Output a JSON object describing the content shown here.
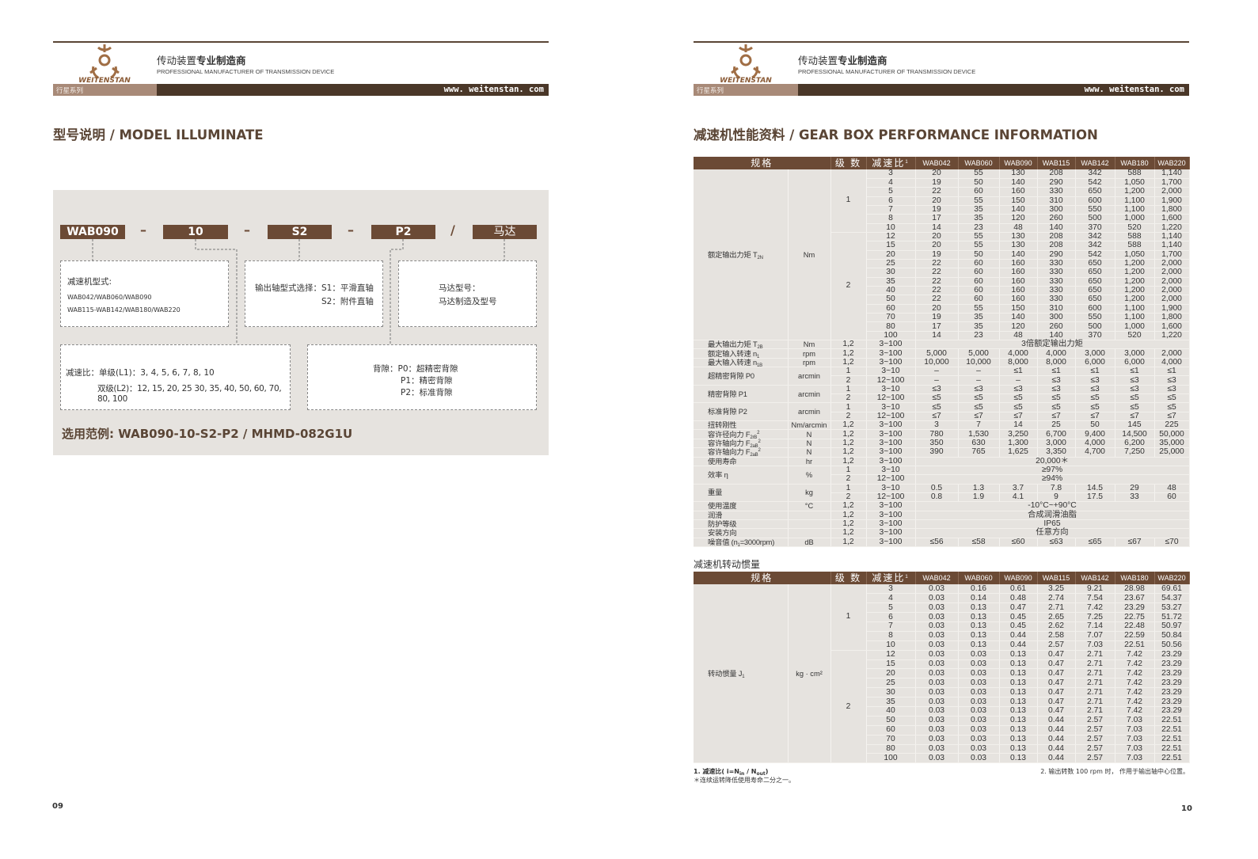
{
  "brand": {
    "name": "WEITENSTAN",
    "tagline_cn_normal": "传动装置",
    "tagline_cn_bold": "专业制造商",
    "tagline_en": "PROFESSIONAL MANUFACTURER OF TRANSMISSION DEVICE",
    "series": "行星系列",
    "website": "www. weitenstan. com",
    "colors": {
      "brown_dark": "#4a3728",
      "brown": "#6b4a35",
      "brown_light": "#a88a78",
      "panel": "#e6e3df"
    }
  },
  "left": {
    "title": "型号说明 / MODEL ILLUMINATE",
    "codes": [
      "WAB090",
      "10",
      "S2",
      "P2",
      "马达"
    ],
    "separators": [
      "–",
      "–",
      "–",
      "/"
    ],
    "box_type": {
      "label": "减速机型式:",
      "line1": "WAB042/WAB060/WAB090",
      "line2": "WAB115-WAB142/WAB180/WAB220"
    },
    "box_shaft": {
      "label": "输出轴型式选择：",
      "s1": "S1：平滑直轴",
      "s2": "S2：附件直轴"
    },
    "box_motor": {
      "label": "马达型号：",
      "line": "马达制造及型号"
    },
    "box_ratio": {
      "label": "减速比：",
      "single": "单级(L1)：3, 4, 5, 6, 7, 8, 10",
      "double": "双级(L2)：12, 15, 20, 25  30, 35, 40, 50, 60, 70, 80, 100"
    },
    "box_backlash": {
      "label": "背隙：",
      "p0": "P0：超精密背隙",
      "p1": "P1：精密背隙",
      "p2": "P2：标准背隙"
    },
    "example": "选用范例: WAB090-10-S2-P2 / MHMD-082G1U",
    "page": "09"
  },
  "right": {
    "title": "减速机性能资料 / GEAR BOX PERFORMANCE INFORMATION",
    "headers": {
      "spec": "规格",
      "stage": "级 数",
      "ratio": "减速比",
      "ratio_sup": "1",
      "models": [
        "WAB042",
        "WAB060",
        "WAB090",
        "WAB115",
        "WAB142",
        "WAB180",
        "WAB220"
      ]
    },
    "performance": [
      {
        "label": "额定输出力矩 T",
        "sub": "2N",
        "unit": "Nm",
        "rows": [
          {
            "stage": "1",
            "ratio": "3",
            "values": [
              "20",
              "55",
              "130",
              "208",
              "342",
              "588",
              "1,140"
            ]
          },
          {
            "stage": "1",
            "ratio": "4",
            "values": [
              "19",
              "50",
              "140",
              "290",
              "542",
              "1,050",
              "1,700"
            ]
          },
          {
            "stage": "1",
            "ratio": "5",
            "values": [
              "22",
              "60",
              "160",
              "330",
              "650",
              "1,200",
              "2,000"
            ]
          },
          {
            "stage": "1",
            "ratio": "6",
            "values": [
              "20",
              "55",
              "150",
              "310",
              "600",
              "1,100",
              "1,900"
            ]
          },
          {
            "stage": "1",
            "ratio": "7",
            "values": [
              "19",
              "35",
              "140",
              "300",
              "550",
              "1,100",
              "1,800"
            ]
          },
          {
            "stage": "1",
            "ratio": "8",
            "values": [
              "17",
              "35",
              "120",
              "260",
              "500",
              "1,000",
              "1,600"
            ]
          },
          {
            "stage": "1",
            "ratio": "10",
            "values": [
              "14",
              "23",
              "48",
              "140",
              "370",
              "520",
              "1,220"
            ]
          },
          {
            "stage": "2",
            "ratio": "12",
            "values": [
              "20",
              "55",
              "130",
              "208",
              "342",
              "588",
              "1,140"
            ]
          },
          {
            "stage": "2",
            "ratio": "15",
            "values": [
              "20",
              "55",
              "130",
              "208",
              "342",
              "588",
              "1,140"
            ]
          },
          {
            "stage": "2",
            "ratio": "20",
            "values": [
              "19",
              "50",
              "140",
              "290",
              "542",
              "1,050",
              "1,700"
            ]
          },
          {
            "stage": "2",
            "ratio": "25",
            "values": [
              "22",
              "60",
              "160",
              "330",
              "650",
              "1,200",
              "2,000"
            ]
          },
          {
            "stage": "2",
            "ratio": "30",
            "values": [
              "22",
              "60",
              "160",
              "330",
              "650",
              "1,200",
              "2,000"
            ]
          },
          {
            "stage": "2",
            "ratio": "35",
            "values": [
              "22",
              "60",
              "160",
              "330",
              "650",
              "1,200",
              "2,000"
            ]
          },
          {
            "stage": "2",
            "ratio": "40",
            "values": [
              "22",
              "60",
              "160",
              "330",
              "650",
              "1,200",
              "2,000"
            ]
          },
          {
            "stage": "2",
            "ratio": "50",
            "values": [
              "22",
              "60",
              "160",
              "330",
              "650",
              "1,200",
              "2,000"
            ]
          },
          {
            "stage": "2",
            "ratio": "60",
            "values": [
              "20",
              "55",
              "150",
              "310",
              "600",
              "1,100",
              "1,900"
            ]
          },
          {
            "stage": "2",
            "ratio": "70",
            "values": [
              "19",
              "35",
              "140",
              "300",
              "550",
              "1,100",
              "1,800"
            ]
          },
          {
            "stage": "2",
            "ratio": "80",
            "values": [
              "17",
              "35",
              "120",
              "260",
              "500",
              "1,000",
              "1,600"
            ]
          },
          {
            "stage": "2",
            "ratio": "100",
            "values": [
              "14",
              "23",
              "48",
              "140",
              "370",
              "520",
              "1,220"
            ]
          }
        ]
      },
      {
        "label": "最大输出力矩 T",
        "sub": "2B",
        "unit": "Nm",
        "rows": [
          {
            "stage": "1,2",
            "ratio": "3~100",
            "merged": "3倍额定输出力矩"
          }
        ]
      },
      {
        "label": "额定输入转速 n",
        "sub": "1",
        "unit": "rpm",
        "rows": [
          {
            "stage": "1,2",
            "ratio": "3~100",
            "values": [
              "5,000",
              "5,000",
              "4,000",
              "4,000",
              "3,000",
              "3,000",
              "2,000"
            ]
          }
        ]
      },
      {
        "label": "最大输入转速 n",
        "sub": "1B",
        "unit": "rpm",
        "rows": [
          {
            "stage": "1,2",
            "ratio": "3~100",
            "values": [
              "10,000",
              "10,000",
              "8,000",
              "8,000",
              "6,000",
              "6,000",
              "4,000"
            ]
          }
        ]
      },
      {
        "label": "超精密背隙  P0",
        "unit": "arcmin",
        "rows": [
          {
            "stage": "1",
            "ratio": "3~10",
            "values": [
              "–",
              "–",
              "≤1",
              "≤1",
              "≤1",
              "≤1",
              "≤1"
            ]
          },
          {
            "stage": "2",
            "ratio": "12~100",
            "values": [
              "–",
              "–",
              "–",
              "≤3",
              "≤3",
              "≤3",
              "≤3"
            ]
          }
        ]
      },
      {
        "label": "精密背隙  P1",
        "unit": "arcmin",
        "rows": [
          {
            "stage": "1",
            "ratio": "3~10",
            "values": [
              "≤3",
              "≤3",
              "≤3",
              "≤3",
              "≤3",
              "≤3",
              "≤3"
            ]
          },
          {
            "stage": "2",
            "ratio": "12~100",
            "values": [
              "≤5",
              "≤5",
              "≤5",
              "≤5",
              "≤5",
              "≤5",
              "≤5"
            ]
          }
        ]
      },
      {
        "label": "标准背隙  P2",
        "unit": "arcmin",
        "rows": [
          {
            "stage": "1",
            "ratio": "3~10",
            "values": [
              "≤5",
              "≤5",
              "≤5",
              "≤5",
              "≤5",
              "≤5",
              "≤5"
            ]
          },
          {
            "stage": "2",
            "ratio": "12~100",
            "values": [
              "≤7",
              "≤7",
              "≤7",
              "≤7",
              "≤7",
              "≤7",
              "≤7"
            ]
          }
        ]
      },
      {
        "label": "扭转刚性",
        "unit": "Nm/arcmin",
        "rows": [
          {
            "stage": "1,2",
            "ratio": "3~100",
            "values": [
              "3",
              "7",
              "14",
              "25",
              "50",
              "145",
              "225"
            ]
          }
        ]
      },
      {
        "label": "容许径向力 F",
        "sub": "2rB",
        "sup": "2",
        "unit": "N",
        "rows": [
          {
            "stage": "1,2",
            "ratio": "3~100",
            "values": [
              "780",
              "1,530",
              "3,250",
              "6,700",
              "9,400",
              "14,500",
              "50,000"
            ]
          }
        ]
      },
      {
        "label": "容许轴向力 F",
        "sub": "2aB",
        "sup": "2",
        "unit": "N",
        "rows": [
          {
            "stage": "1,2",
            "ratio": "3~100",
            "values": [
              "350",
              "630",
              "1,300",
              "3,000",
              "4,000",
              "6,200",
              "35,000"
            ]
          }
        ]
      },
      {
        "label": "容许轴向力 F",
        "sub": "2aB",
        "sup": "2",
        "unit": "N",
        "rows": [
          {
            "stage": "1,2",
            "ratio": "3~100",
            "values": [
              "390",
              "765",
              "1,625",
              "3,350",
              "4,700",
              "7,250",
              "25,000"
            ]
          }
        ]
      },
      {
        "label": "使用寿命",
        "unit": "hr",
        "rows": [
          {
            "stage": "1,2",
            "ratio": "3~100",
            "merged": "20,000＊"
          }
        ]
      },
      {
        "label": "效率  η",
        "unit": "%",
        "rows": [
          {
            "stage": "1",
            "ratio": "3~10",
            "merged": "≥97%"
          },
          {
            "stage": "2",
            "ratio": "12~100",
            "merged": "≥94%"
          }
        ]
      },
      {
        "label": "重量",
        "unit": "kg",
        "rows": [
          {
            "stage": "1",
            "ratio": "3~10",
            "values": [
              "0.5",
              "1.3",
              "3.7",
              "7.8",
              "14.5",
              "29",
              "48"
            ]
          },
          {
            "stage": "2",
            "ratio": "12~100",
            "values": [
              "0.8",
              "1.9",
              "4.1",
              "9",
              "17.5",
              "33",
              "60"
            ]
          }
        ]
      },
      {
        "label": "使用温度",
        "unit": "°C",
        "rows": [
          {
            "stage": "1,2",
            "ratio": "3~100",
            "merged": "-10°C~+90°C"
          }
        ]
      },
      {
        "label": "润滑",
        "unit": "",
        "rows": [
          {
            "stage": "1,2",
            "ratio": "3~100",
            "merged": "合成润滑油脂"
          }
        ]
      },
      {
        "label": "防护等级",
        "unit": "",
        "rows": [
          {
            "stage": "1,2",
            "ratio": "3~100",
            "merged": "IP65"
          }
        ]
      },
      {
        "label": "安装方向",
        "unit": "",
        "rows": [
          {
            "stage": "1,2",
            "ratio": "3~100",
            "merged": "任意方向"
          }
        ]
      },
      {
        "label": "噪音值 (n",
        "sub": "1",
        "label_after": "=3000rpm)",
        "unit": "dB",
        "rows": [
          {
            "stage": "1,2",
            "ratio": "3~100",
            "values": [
              "≤56",
              "≤58",
              "≤60",
              "≤63",
              "≤65",
              "≤67",
              "≤70"
            ]
          }
        ]
      }
    ],
    "inertia_title": "减速机转动惯量",
    "inertia": [
      {
        "label": "转动惯量 J",
        "sub": "1",
        "unit": "kg · cm²",
        "rows": [
          {
            "stage": "1",
            "ratio": "3",
            "values": [
              "0.03",
              "0.16",
              "0.61",
              "3.25",
              "9.21",
              "28.98",
              "69.61"
            ]
          },
          {
            "stage": "1",
            "ratio": "4",
            "values": [
              "0.03",
              "0.14",
              "0.48",
              "2.74",
              "7.54",
              "23.67",
              "54.37"
            ]
          },
          {
            "stage": "1",
            "ratio": "5",
            "values": [
              "0.03",
              "0.13",
              "0.47",
              "2.71",
              "7.42",
              "23.29",
              "53.27"
            ]
          },
          {
            "stage": "1",
            "ratio": "6",
            "values": [
              "0.03",
              "0.13",
              "0.45",
              "2.65",
              "7.25",
              "22.75",
              "51.72"
            ]
          },
          {
            "stage": "1",
            "ratio": "7",
            "values": [
              "0.03",
              "0.13",
              "0.45",
              "2.62",
              "7.14",
              "22.48",
              "50.97"
            ]
          },
          {
            "stage": "1",
            "ratio": "8",
            "values": [
              "0.03",
              "0.13",
              "0.44",
              "2.58",
              "7.07",
              "22.59",
              "50.84"
            ]
          },
          {
            "stage": "1",
            "ratio": "10",
            "values": [
              "0.03",
              "0.13",
              "0.44",
              "2.57",
              "7.03",
              "22.51",
              "50.56"
            ]
          },
          {
            "stage": "2",
            "ratio": "12",
            "values": [
              "0.03",
              "0.03",
              "0.13",
              "0.47",
              "2.71",
              "7.42",
              "23.29"
            ]
          },
          {
            "stage": "2",
            "ratio": "15",
            "values": [
              "0.03",
              "0.03",
              "0.13",
              "0.47",
              "2.71",
              "7.42",
              "23.29"
            ]
          },
          {
            "stage": "2",
            "ratio": "20",
            "values": [
              "0.03",
              "0.03",
              "0.13",
              "0.47",
              "2.71",
              "7.42",
              "23.29"
            ]
          },
          {
            "stage": "2",
            "ratio": "25",
            "values": [
              "0.03",
              "0.03",
              "0.13",
              "0.47",
              "2.71",
              "7.42",
              "23.29"
            ]
          },
          {
            "stage": "2",
            "ratio": "30",
            "values": [
              "0.03",
              "0.03",
              "0.13",
              "0.47",
              "2.71",
              "7.42",
              "23.29"
            ]
          },
          {
            "stage": "2",
            "ratio": "35",
            "values": [
              "0.03",
              "0.03",
              "0.13",
              "0.47",
              "2.71",
              "7.42",
              "23.29"
            ]
          },
          {
            "stage": "2",
            "ratio": "40",
            "values": [
              "0.03",
              "0.03",
              "0.13",
              "0.47",
              "2.71",
              "7.42",
              "23.29"
            ]
          },
          {
            "stage": "2",
            "ratio": "50",
            "values": [
              "0.03",
              "0.03",
              "0.13",
              "0.44",
              "2.57",
              "7.03",
              "22.51"
            ]
          },
          {
            "stage": "2",
            "ratio": "60",
            "values": [
              "0.03",
              "0.03",
              "0.13",
              "0.44",
              "2.57",
              "7.03",
              "22.51"
            ]
          },
          {
            "stage": "2",
            "ratio": "70",
            "values": [
              "0.03",
              "0.03",
              "0.13",
              "0.44",
              "2.57",
              "7.03",
              "22.51"
            ]
          },
          {
            "stage": "2",
            "ratio": "80",
            "values": [
              "0.03",
              "0.03",
              "0.13",
              "0.44",
              "2.57",
              "7.03",
              "22.51"
            ]
          },
          {
            "stage": "2",
            "ratio": "100",
            "values": [
              "0.03",
              "0.03",
              "0.13",
              "0.44",
              "2.57",
              "7.03",
              "22.51"
            ]
          }
        ]
      }
    ],
    "footnotes": {
      "note1": "1. 减速比( i=N",
      "note1_sub_in": "in",
      "note1_mid": " / N",
      "note1_sub_out": "out",
      "note1_end": ")",
      "note_star": "＊连续运转降低使用寿命二分之一。",
      "note2": "2. 输出转数  100 rpm 时，  作用于输出轴中心位置。"
    },
    "page": "10"
  }
}
